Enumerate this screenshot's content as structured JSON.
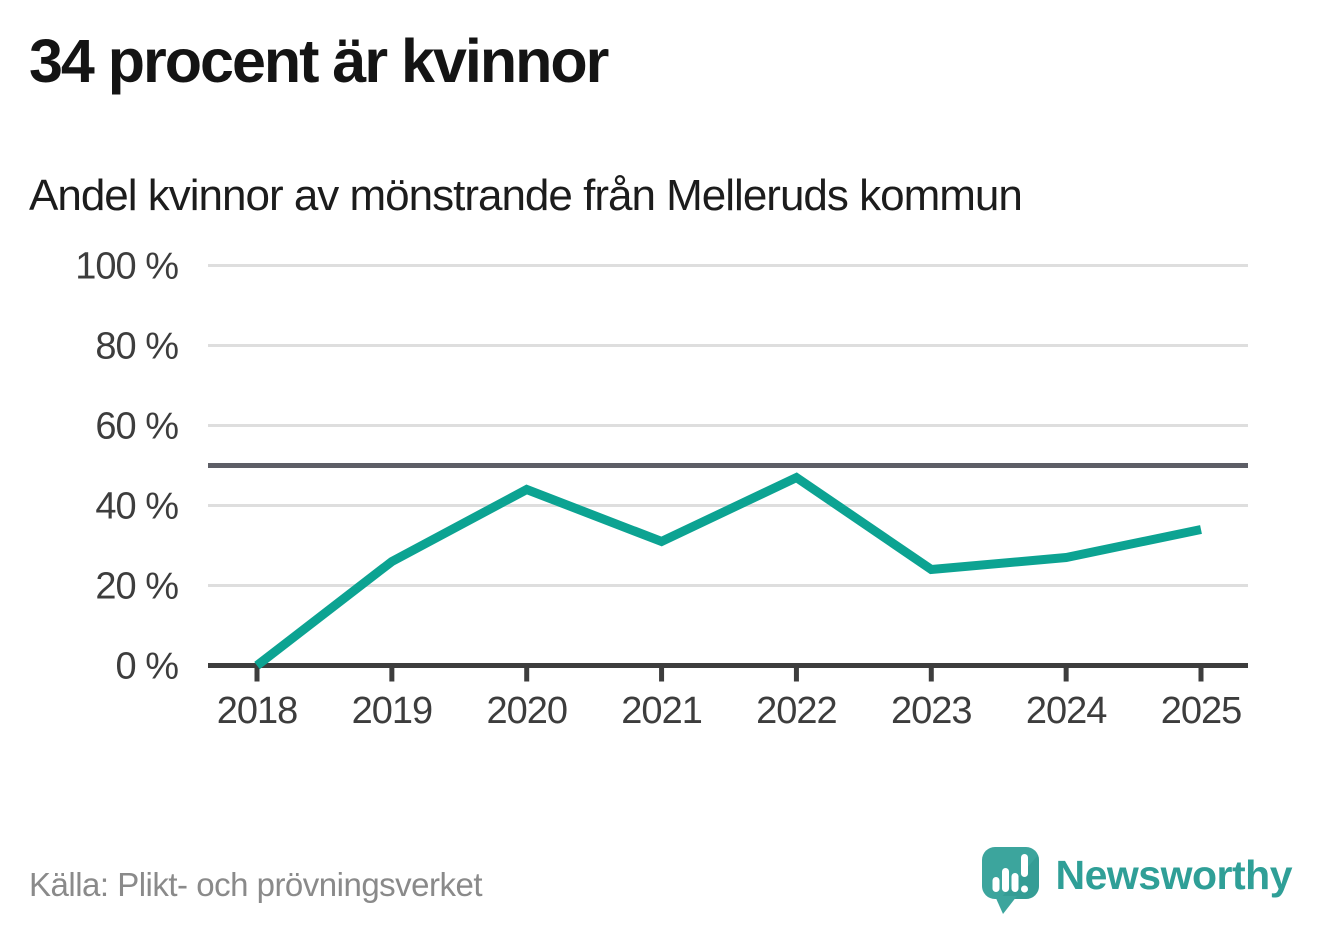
{
  "header": {
    "title": "34 procent är kvinnor",
    "subtitle": "Andel kvinnor av mönstrande från Melleruds kommun"
  },
  "chart_data": {
    "type": "line",
    "title": "34 procent är kvinnor",
    "subtitle": "Andel kvinnor av mönstrande från Melleruds kommun",
    "categories": [
      "2018",
      "2019",
      "2020",
      "2021",
      "2022",
      "2023",
      "2024",
      "2025"
    ],
    "values": [
      0,
      26,
      44,
      31,
      47,
      24,
      27,
      34
    ],
    "unit": "%",
    "xlabel": "",
    "ylabel": "",
    "ylim": [
      0,
      100
    ],
    "y_tick_values": [
      0,
      20,
      40,
      60,
      80,
      100
    ],
    "y_tick_labels": [
      "0 %",
      "20 %",
      "40 %",
      "60 %",
      "80 %",
      "100 %"
    ],
    "reference_line": 50,
    "grid": "horizontal",
    "legend": "none",
    "line_color": "#0ca392",
    "reference_line_color": "#5d5e66",
    "axis_color": "#3d3d3d",
    "gridline_color": "#dedede",
    "tick_label_color": "#3d3d3d"
  },
  "footer": {
    "source": "Källa: Plikt- och prövningsverket",
    "brand": "Newsworthy",
    "brand_color": "#2f9f97",
    "brand_icon": "speech-bubble-bar-chart-exclamation",
    "brand_icon_color": "#3ca59d"
  }
}
